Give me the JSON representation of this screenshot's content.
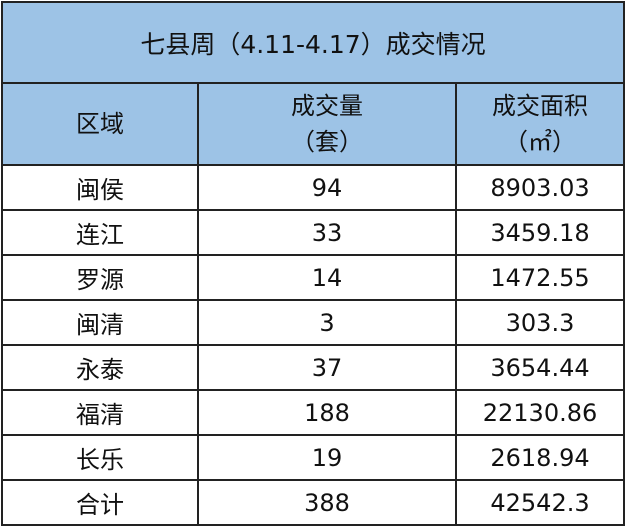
{
  "title": "七县周（4.11-4.17）成交情况",
  "header": {
    "region": "区域",
    "volume_line1": "成交量",
    "volume_line2": "（套）",
    "area_line1": "成交面积",
    "area_line2": "（㎡）"
  },
  "rows": [
    {
      "region": "闽侯",
      "volume": "94",
      "area": "8903.03"
    },
    {
      "region": "连江",
      "volume": "33",
      "area": "3459.18"
    },
    {
      "region": "罗源",
      "volume": "14",
      "area": "1472.55"
    },
    {
      "region": "闽清",
      "volume": "3",
      "area": "303.3"
    },
    {
      "region": "永泰",
      "volume": "37",
      "area": "3654.44"
    },
    {
      "region": "福清",
      "volume": "188",
      "area": "22130.86"
    },
    {
      "region": "长乐",
      "volume": "19",
      "area": "2618.94"
    },
    {
      "region": "合计",
      "volume": "388",
      "area": "42542.3"
    }
  ],
  "colors": {
    "header_bg": "#9dc3e6",
    "border": "#222222"
  }
}
